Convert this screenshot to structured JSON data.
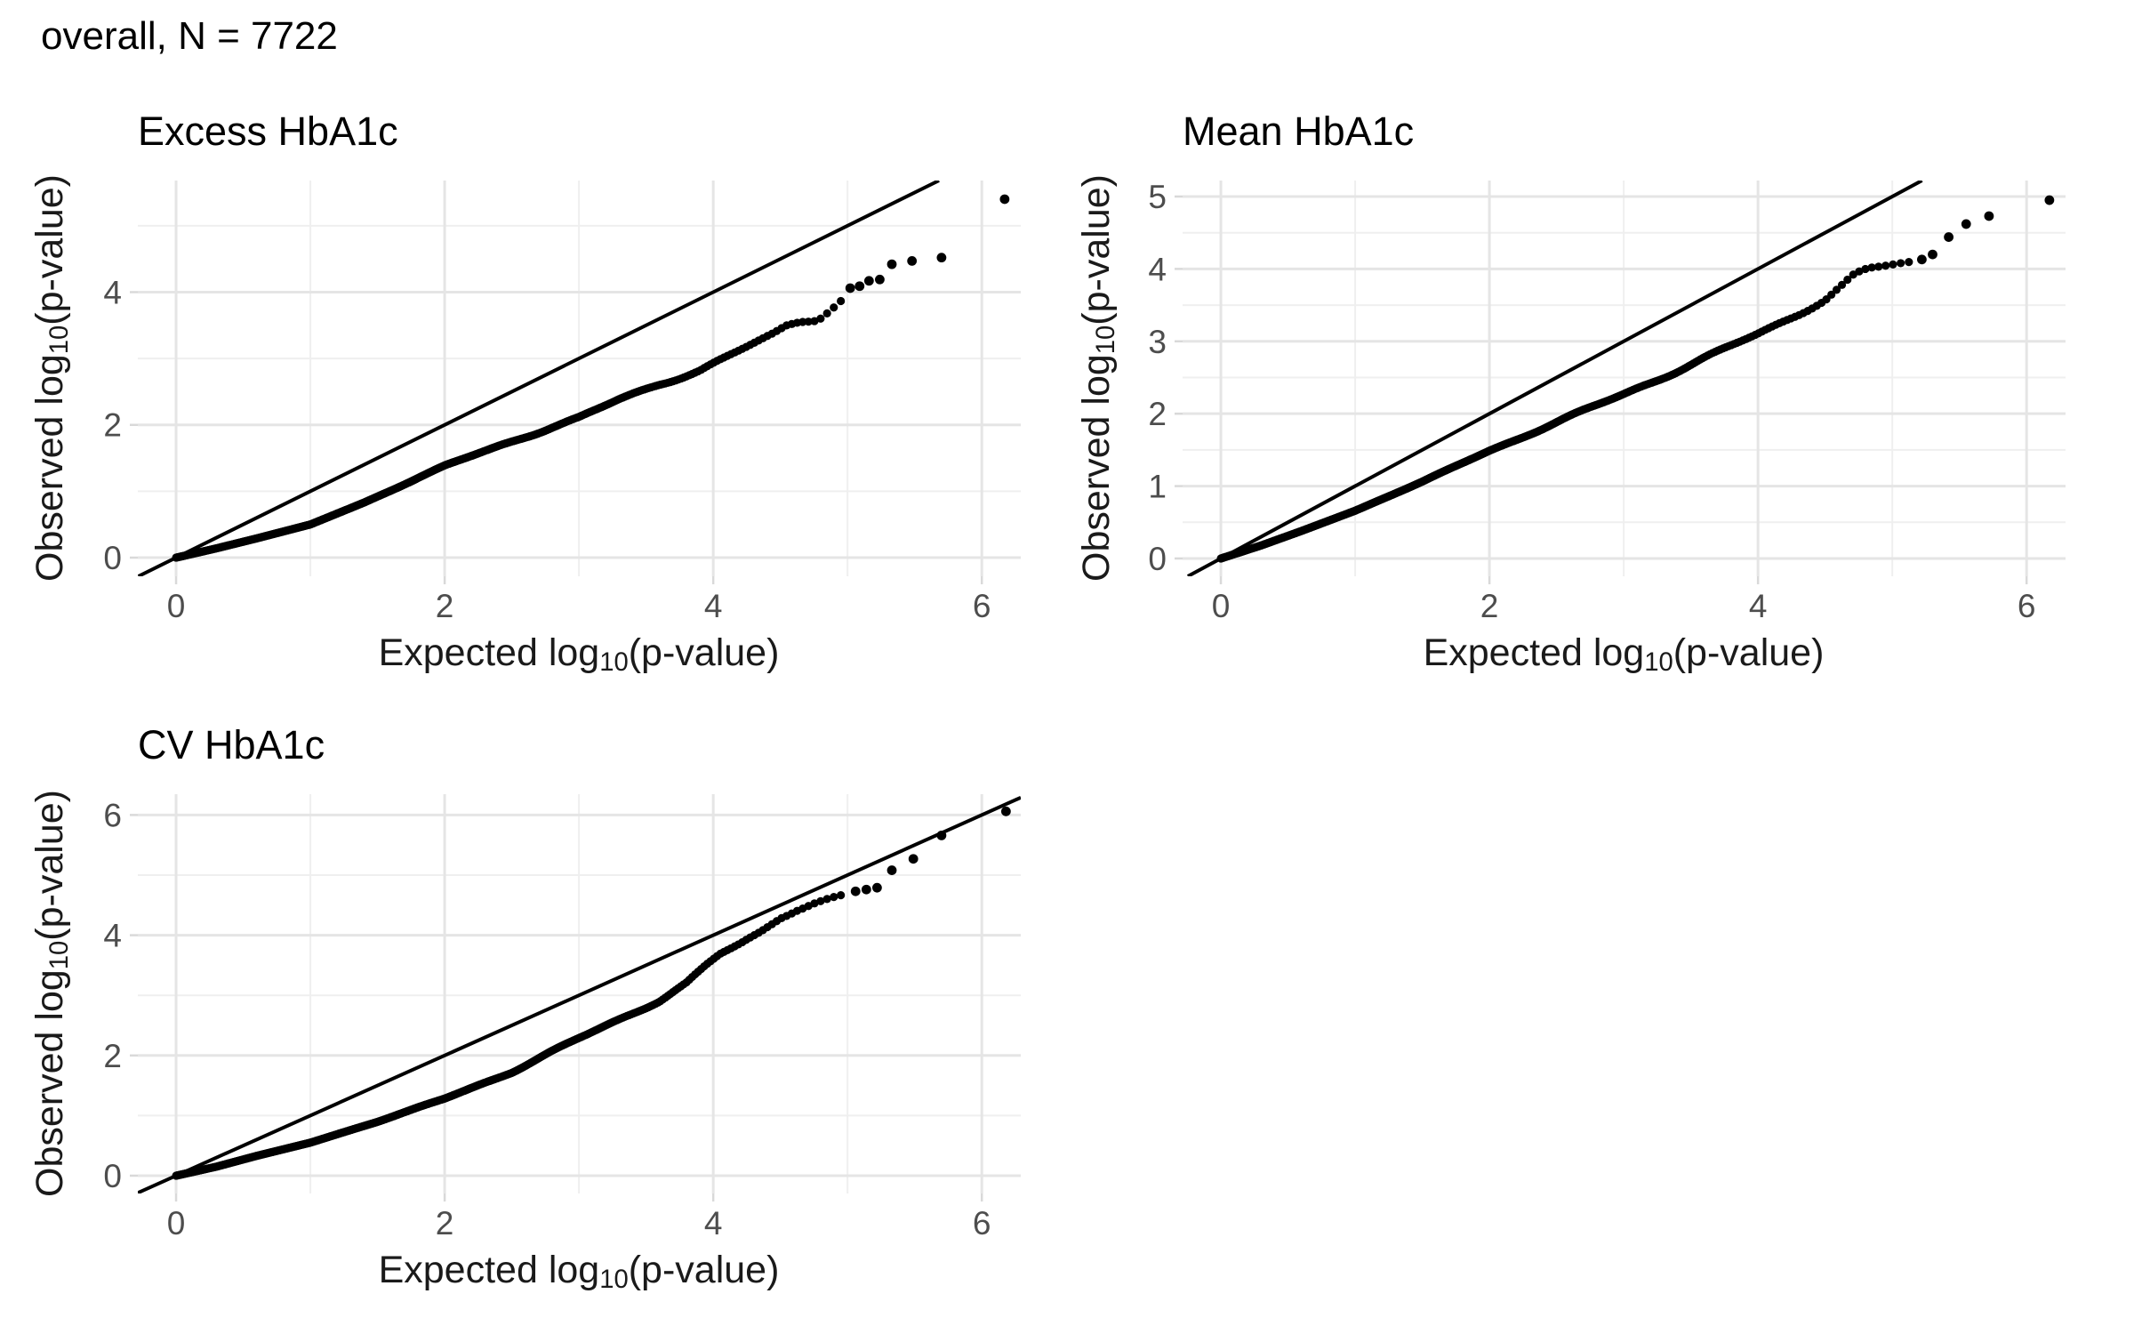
{
  "header": {
    "title": "overall, N = 7722"
  },
  "axes": {
    "x_label": {
      "pre": "Expected log",
      "sub": "10",
      "post": "(p-value)"
    },
    "y_label": {
      "pre": "Observed log",
      "sub": "10",
      "post": "(p-value)"
    }
  },
  "styles": {
    "background": "#FFFFFF",
    "point_color": "#000000",
    "line_color": "#000000",
    "grid_major": "#E5E5E5",
    "grid_minor": "#EFEFEF",
    "tick_color": "#D9D9D9",
    "tick_label_color": "#4D4D4D",
    "axis_title_color": "#1A1A1A",
    "title_color": "#000000"
  },
  "chart_data": [
    {
      "type": "scatter",
      "title": "Excess HbA1c",
      "xlabel": "Expected log10(p-value)",
      "ylabel": "Observed log10(p-value)",
      "xlim": [
        -0.285,
        6.29
      ],
      "ylim": [
        -0.281,
        5.681
      ],
      "x_ticks": [
        0,
        2,
        4,
        6
      ],
      "x_minor": [
        1,
        3,
        5
      ],
      "y_ticks": [
        0,
        2,
        4
      ],
      "y_minor": [
        1,
        3,
        5
      ],
      "grid": true,
      "legend": "none",
      "identity_line": true,
      "curve_anchors": [
        [
          0,
          0
        ],
        [
          0.3,
          0.14
        ],
        [
          0.6,
          0.29
        ],
        [
          1,
          0.5
        ],
        [
          1.4,
          0.83
        ],
        [
          1.8,
          1.2
        ],
        [
          2,
          1.38
        ],
        [
          2.4,
          1.68
        ],
        [
          2.8,
          1.97
        ],
        [
          3,
          2.1
        ],
        [
          3.3,
          2.38
        ],
        [
          3.6,
          2.62
        ],
        [
          3.9,
          2.82
        ],
        [
          4.1,
          3.02
        ],
        [
          4.3,
          3.22
        ],
        [
          4.45,
          3.37
        ],
        [
          4.55,
          3.5
        ],
        [
          4.65,
          3.57
        ],
        [
          4.78,
          3.6
        ],
        [
          4.88,
          3.75
        ],
        [
          4.97,
          3.9
        ]
      ],
      "band_end_x": 4.97,
      "tail_points": [
        [
          5.02,
          4.06
        ],
        [
          5.09,
          4.09
        ],
        [
          5.16,
          4.17
        ],
        [
          5.24,
          4.19
        ],
        [
          5.33,
          4.42
        ],
        [
          5.48,
          4.47
        ],
        [
          5.7,
          4.52
        ],
        [
          6.17,
          5.4
        ]
      ]
    },
    {
      "type": "scatter",
      "title": "Mean HbA1c",
      "xlabel": "Expected log10(p-value)",
      "ylabel": "Observed log10(p-value)",
      "xlim": [
        -0.285,
        6.29
      ],
      "ylim": [
        -0.246,
        5.221
      ],
      "x_ticks": [
        0,
        2,
        4,
        6
      ],
      "x_minor": [
        1,
        3,
        5
      ],
      "y_ticks": [
        0,
        1,
        2,
        3,
        4,
        5
      ],
      "y_minor": [
        0.5,
        1.5,
        2.5,
        3.5,
        4.5
      ],
      "grid": true,
      "legend": "none",
      "identity_line": true,
      "curve_anchors": [
        [
          0,
          0
        ],
        [
          0.3,
          0.18
        ],
        [
          0.6,
          0.38
        ],
        [
          1,
          0.66
        ],
        [
          1.5,
          1.06
        ],
        [
          2,
          1.49
        ],
        [
          2.5,
          1.88
        ],
        [
          3,
          2.27
        ],
        [
          3.5,
          2.68
        ],
        [
          4,
          3.1
        ],
        [
          4.3,
          3.38
        ],
        [
          4.5,
          3.58
        ],
        [
          4.62,
          3.76
        ],
        [
          4.72,
          3.92
        ],
        [
          4.82,
          4.0
        ],
        [
          5.0,
          4.05
        ],
        [
          5.15,
          4.09
        ]
      ],
      "band_end_x": 5.15,
      "tail_points": [
        [
          5.22,
          4.13
        ],
        [
          5.3,
          4.2
        ],
        [
          5.42,
          4.44
        ],
        [
          5.55,
          4.62
        ],
        [
          5.72,
          4.73
        ],
        [
          6.17,
          4.95
        ]
      ]
    },
    {
      "type": "scatter",
      "title": "CV HbA1c",
      "xlabel": "Expected log10(p-value)",
      "ylabel": "Observed log10(p-value)",
      "xlim": [
        -0.285,
        6.29
      ],
      "ylim": [
        -0.296,
        6.346
      ],
      "x_ticks": [
        0,
        2,
        4,
        6
      ],
      "x_minor": [
        1,
        3,
        5
      ],
      "y_ticks": [
        0,
        2,
        4,
        6
      ],
      "y_minor": [
        1,
        3,
        5
      ],
      "grid": true,
      "legend": "none",
      "identity_line": true,
      "curve_anchors": [
        [
          0,
          0
        ],
        [
          0.3,
          0.15
        ],
        [
          0.6,
          0.33
        ],
        [
          1,
          0.55
        ],
        [
          1.5,
          0.9
        ],
        [
          2,
          1.28
        ],
        [
          2.5,
          1.73
        ],
        [
          3,
          2.28
        ],
        [
          3.3,
          2.6
        ],
        [
          3.6,
          2.92
        ],
        [
          3.8,
          3.2
        ],
        [
          3.95,
          3.5
        ],
        [
          4.05,
          3.68
        ],
        [
          4.2,
          3.85
        ],
        [
          4.35,
          4.05
        ],
        [
          4.5,
          4.3
        ],
        [
          4.62,
          4.43
        ],
        [
          4.75,
          4.53
        ],
        [
          4.88,
          4.61
        ],
        [
          5.0,
          4.68
        ]
      ],
      "band_end_x": 5.0,
      "tail_points": [
        [
          5.06,
          4.73
        ],
        [
          5.14,
          4.76
        ],
        [
          5.22,
          4.79
        ],
        [
          5.33,
          5.08
        ],
        [
          5.49,
          5.27
        ],
        [
          5.7,
          5.66
        ],
        [
          6.18,
          6.06
        ]
      ]
    }
  ]
}
